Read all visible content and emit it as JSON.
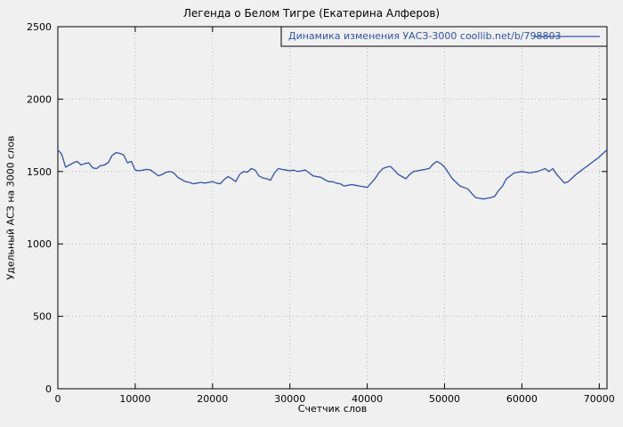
{
  "title": "Легенда о Белом Тигре (Екатерина Алферов)",
  "chart_data": {
    "type": "line",
    "title": "Легенда о Белом Тигре (Екатерина Алферов)",
    "xlabel": "Счетчик слов",
    "ylabel": "Удельный АСЗ на 3000 слов",
    "xlim": [
      0,
      71000
    ],
    "ylim": [
      0,
      2500
    ],
    "xticks": [
      0,
      10000,
      20000,
      30000,
      40000,
      50000,
      60000,
      70000
    ],
    "yticks": [
      0,
      500,
      1000,
      1500,
      2000,
      2500
    ],
    "grid": true,
    "legend_position": "top-right",
    "line_color": "#3153a5",
    "grid_color": "#b8b8b8",
    "axis_color": "#000000",
    "series": [
      {
        "name": "Динамика изменения УАСЗ-3000 coollib.net/b/798803",
        "x_start": 0,
        "x_step": 500,
        "y": [
          1650,
          1620,
          1530,
          1545,
          1560,
          1570,
          1545,
          1555,
          1560,
          1525,
          1520,
          1540,
          1545,
          1560,
          1610,
          1630,
          1625,
          1615,
          1560,
          1570,
          1510,
          1505,
          1510,
          1515,
          1510,
          1490,
          1470,
          1480,
          1495,
          1500,
          1490,
          1460,
          1445,
          1430,
          1425,
          1415,
          1420,
          1425,
          1420,
          1425,
          1430,
          1420,
          1415,
          1445,
          1465,
          1450,
          1430,
          1480,
          1500,
          1495,
          1520,
          1510,
          1470,
          1455,
          1450,
          1440,
          1490,
          1520,
          1515,
          1510,
          1505,
          1510,
          1500,
          1505,
          1510,
          1490,
          1470,
          1465,
          1460,
          1445,
          1430,
          1430,
          1420,
          1415,
          1400,
          1405,
          1410,
          1405,
          1400,
          1395,
          1390,
          1420,
          1450,
          1490,
          1520,
          1530,
          1535,
          1510,
          1480,
          1465,
          1450,
          1480,
          1500,
          1505,
          1510,
          1515,
          1520,
          1550,
          1570,
          1555,
          1530,
          1490,
          1450,
          1425,
          1400,
          1390,
          1380,
          1350,
          1320,
          1315,
          1310,
          1315,
          1320,
          1330,
          1370,
          1400,
          1450,
          1470,
          1490,
          1495,
          1500,
          1495,
          1490,
          1495,
          1500,
          1510,
          1520,
          1500,
          1520,
          1480,
          1450,
          1420,
          1430,
          1455,
          1480,
          1500,
          1520,
          1540,
          1560,
          1580,
          1600,
          1625,
          1650
        ]
      }
    ]
  }
}
